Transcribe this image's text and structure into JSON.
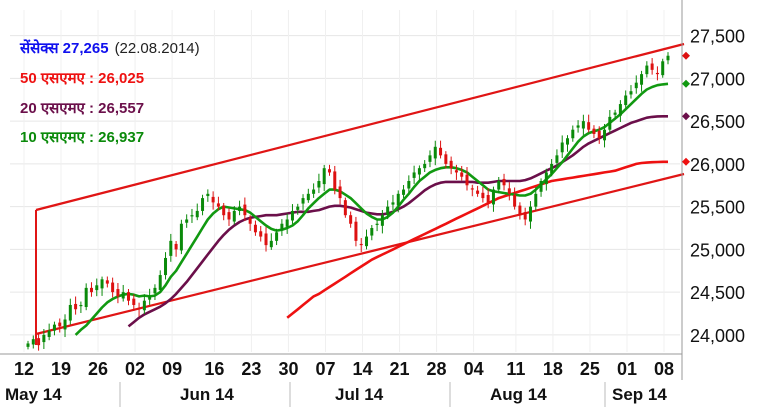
{
  "chart_data": {
    "type": "candlestick",
    "title": "",
    "y_ticks": [
      24000,
      24500,
      25000,
      25500,
      26000,
      26500,
      27000,
      27500
    ],
    "y_tick_labels": [
      "24,000",
      "24,500",
      "25,000",
      "25,500",
      "26,000",
      "26,500",
      "27,000",
      "27,500"
    ],
    "ylim": [
      23800,
      27800
    ],
    "x_ticks": [
      "12",
      "19",
      "26",
      "02",
      "09",
      "16",
      "23",
      "30",
      "07",
      "14",
      "21",
      "28",
      "04",
      "11",
      "18",
      "25",
      "01",
      "08"
    ],
    "months": [
      "May 14",
      "Jun 14",
      "Jul 14",
      "Aug 14",
      "Sep 14"
    ],
    "legend": [
      {
        "label": "सेंसेक्स 27,265",
        "date": "(22.08.2014)",
        "color": "#1010ee"
      },
      {
        "label": "50 एसएमए : 26,025",
        "color": "#ee1111"
      },
      {
        "label": "20 एसएमए : 26,557",
        "color": "#6b0f4a"
      },
      {
        "label": "10 एसएमए : 26,937",
        "color": "#0a8a0a"
      }
    ],
    "colors": {
      "up": "#0a8a0a",
      "down": "#dd1111",
      "sma50": "#ee1111",
      "sma20": "#6b0f4a",
      "sma10": "#119911",
      "channel": "#e01515"
    },
    "closes": [
      23900,
      23950,
      23880,
      24000,
      24050,
      24120,
      24100,
      24180,
      24350,
      24300,
      24350,
      24550,
      24500,
      24580,
      24650,
      24600,
      24500,
      24450,
      24500,
      24400,
      24350,
      24300,
      24400,
      24450,
      24550,
      24700,
      24900,
      25100,
      25000,
      25300,
      25350,
      25400,
      25450,
      25600,
      25650,
      25550,
      25500,
      25400,
      25350,
      25450,
      25500,
      25400,
      25300,
      25200,
      25150,
      25050,
      25100,
      25200,
      25300,
      25350,
      25450,
      25500,
      25600,
      25650,
      25700,
      25800,
      25950,
      25900,
      25700,
      25600,
      25400,
      25300,
      25100,
      25050,
      25150,
      25250,
      25300,
      25400,
      25500,
      25550,
      25650,
      25700,
      25800,
      25900,
      25950,
      26000,
      26100,
      26200,
      26100,
      26000,
      25950,
      25900,
      25850,
      25750,
      25700,
      25650,
      25600,
      25550,
      25700,
      25800,
      25750,
      25650,
      25500,
      25400,
      25350,
      25500,
      25650,
      25800,
      25900,
      26000,
      26100,
      26250,
      26300,
      26400,
      26450,
      26500,
      26400,
      26350,
      26300,
      26400,
      26550,
      26600,
      26700,
      26800,
      26850,
      26950,
      27050,
      27150,
      27100,
      27050,
      27200,
      27265
    ],
    "sma10": [
      null,
      null,
      null,
      null,
      null,
      null,
      null,
      null,
      null,
      24000,
      24060,
      24110,
      24180,
      24250,
      24320,
      24380,
      24420,
      24450,
      24470,
      24480,
      24470,
      24450,
      24460,
      24450,
      24460,
      24500,
      24580,
      24680,
      24750,
      24850,
      24950,
      25050,
      25150,
      25250,
      25350,
      25420,
      25470,
      25500,
      25490,
      25480,
      25470,
      25460,
      25430,
      25380,
      25330,
      25280,
      25240,
      25220,
      25230,
      25250,
      25280,
      25330,
      25400,
      25480,
      25540,
      25600,
      25650,
      25700,
      25700,
      25680,
      25640,
      25600,
      25540,
      25480,
      25420,
      25380,
      25350,
      25350,
      25380,
      25430,
      25500,
      25580,
      25650,
      25730,
      25800,
      25850,
      25900,
      25930,
      25950,
      25960,
      25960,
      25950,
      25930,
      25900,
      25850,
      25800,
      25750,
      25700,
      25680,
      25670,
      25660,
      25650,
      25640,
      25630,
      25630,
      25650,
      25700,
      25760,
      25820,
      25880,
      25950,
      26020,
      26100,
      26180,
      26260,
      26320,
      26360,
      26380,
      26400,
      26430,
      26480,
      26530,
      26580,
      26640,
      26700,
      26760,
      26820,
      26870,
      26900,
      26920,
      26930,
      26937
    ],
    "sma20": [
      null,
      null,
      null,
      null,
      null,
      null,
      null,
      null,
      null,
      null,
      null,
      null,
      null,
      null,
      null,
      null,
      null,
      null,
      null,
      24100,
      24150,
      24200,
      24240,
      24270,
      24300,
      24330,
      24370,
      24420,
      24480,
      24550,
      24620,
      24700,
      24780,
      24860,
      24940,
      25020,
      25100,
      25170,
      25230,
      25280,
      25320,
      25350,
      25370,
      25380,
      25390,
      25400,
      25400,
      25400,
      25410,
      25420,
      25430,
      25440,
      25440,
      25440,
      25450,
      25460,
      25480,
      25500,
      25510,
      25510,
      25500,
      25490,
      25470,
      25450,
      25430,
      25420,
      25410,
      25410,
      25420,
      25440,
      25470,
      25500,
      25540,
      25590,
      25640,
      25690,
      25730,
      25760,
      25780,
      25790,
      25790,
      25790,
      25790,
      25790,
      25790,
      25780,
      25780,
      25780,
      25790,
      25800,
      25800,
      25800,
      25800,
      25800,
      25810,
      25830,
      25860,
      25890,
      25920,
      25950,
      25980,
      26020,
      26060,
      26100,
      26150,
      26200,
      26240,
      26270,
      26300,
      26330,
      26360,
      26390,
      26420,
      26450,
      26480,
      26500,
      26520,
      26540,
      26550,
      26555,
      26557,
      26557
    ],
    "sma50": [
      null,
      null,
      null,
      null,
      null,
      null,
      null,
      null,
      null,
      null,
      null,
      null,
      null,
      null,
      null,
      null,
      null,
      null,
      null,
      null,
      null,
      null,
      null,
      null,
      null,
      null,
      null,
      null,
      null,
      null,
      null,
      null,
      null,
      null,
      null,
      null,
      null,
      null,
      null,
      null,
      null,
      null,
      null,
      null,
      null,
      null,
      null,
      null,
      null,
      24200,
      24250,
      24300,
      24350,
      24400,
      24450,
      24480,
      24520,
      24560,
      24600,
      24640,
      24680,
      24720,
      24760,
      24800,
      24840,
      24880,
      24910,
      24940,
      24970,
      25000,
      25030,
      25060,
      25090,
      25120,
      25150,
      25180,
      25210,
      25240,
      25270,
      25300,
      25330,
      25360,
      25390,
      25420,
      25450,
      25480,
      25510,
      25540,
      25570,
      25600,
      25620,
      25640,
      25660,
      25680,
      25700,
      25720,
      25740,
      25760,
      25780,
      25800,
      25810,
      25820,
      25830,
      25840,
      25850,
      25860,
      25870,
      25880,
      25890,
      25900,
      25910,
      25920,
      25940,
      25960,
      25980,
      26000,
      26010,
      26015,
      26020,
      26022,
      26024,
      26025
    ],
    "channel_upper": {
      "from": {
        "bar": 0,
        "y": 25400
      },
      "to": {
        "bar": 121,
        "y": 27230
      }
    },
    "channel_lower": {
      "from": {
        "bar": 0,
        "y": 23900
      },
      "to": {
        "bar": 121,
        "y": 25780
      }
    }
  }
}
